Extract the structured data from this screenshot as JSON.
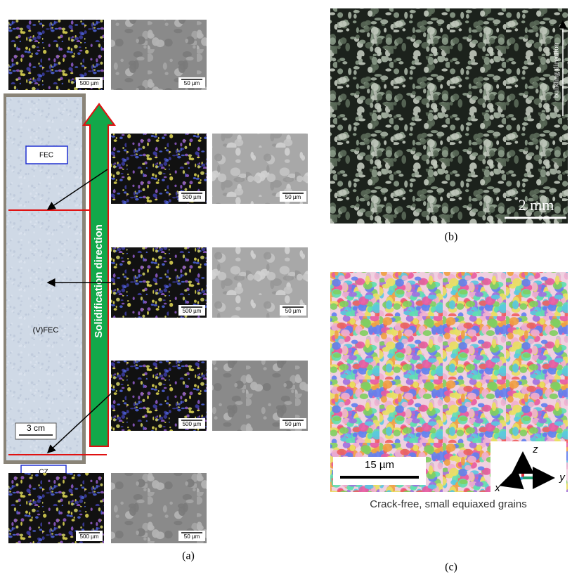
{
  "panel_a": {
    "label": "(a)",
    "zones": [
      "FEC",
      "(V)FEC",
      "CZ"
    ],
    "scale_bar": "3 cm",
    "arrow_label": "Solidification direction",
    "micrograph_scale_bars": [
      [
        "500 µm",
        "50 µm"
      ],
      [
        "500 µm",
        "50 µm"
      ],
      [
        "500 µm",
        "50 µm"
      ],
      [
        "500 µm",
        "50 µm"
      ],
      [
        "500 µm",
        "50 µm"
      ]
    ]
  },
  "panel_b": {
    "label": "(b)",
    "scale_bar": "2 mm",
    "annotation": "building direction"
  },
  "panel_c": {
    "label": "(c)",
    "scale_bar": "15 µm",
    "axes": [
      "z",
      "y",
      "x"
    ],
    "caption": "Crack-free, small equiaxed grains"
  }
}
